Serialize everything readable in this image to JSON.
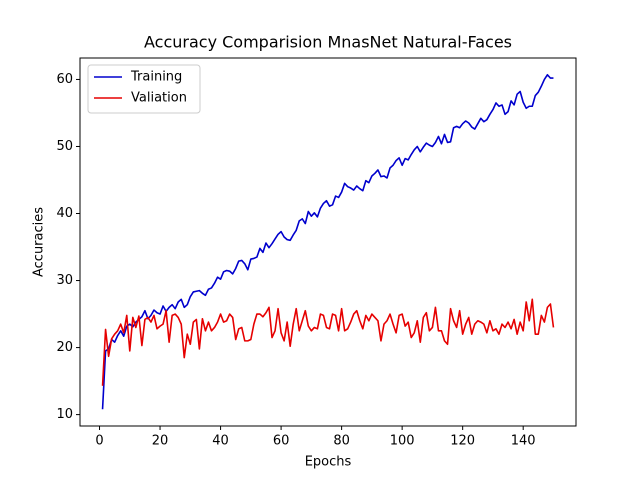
{
  "chart_data": {
    "type": "line",
    "title": "Accuracy Comparision MnasNet Natural-Faces",
    "x_label": "Epochs",
    "y_label": "Accuracies",
    "x": [
      1,
      2,
      3,
      4,
      5,
      6,
      7,
      8,
      9,
      10,
      11,
      12,
      13,
      14,
      15,
      16,
      17,
      18,
      19,
      20,
      21,
      22,
      23,
      24,
      25,
      26,
      27,
      28,
      29,
      30,
      31,
      32,
      33,
      34,
      35,
      36,
      37,
      38,
      39,
      40,
      41,
      42,
      43,
      44,
      45,
      46,
      47,
      48,
      49,
      50,
      51,
      52,
      53,
      54,
      55,
      56,
      57,
      58,
      59,
      60,
      61,
      62,
      63,
      64,
      65,
      66,
      67,
      68,
      69,
      70,
      71,
      72,
      73,
      74,
      75,
      76,
      77,
      78,
      79,
      80,
      81,
      82,
      83,
      84,
      85,
      86,
      87,
      88,
      89,
      90,
      91,
      92,
      93,
      94,
      95,
      96,
      97,
      98,
      99,
      100,
      101,
      102,
      103,
      104,
      105,
      106,
      107,
      108,
      109,
      110,
      111,
      112,
      113,
      114,
      115,
      116,
      117,
      118,
      119,
      120,
      121,
      122,
      123,
      124,
      125,
      126,
      127,
      128,
      129,
      130,
      131,
      132,
      133,
      134,
      135,
      136,
      137,
      138,
      139,
      140,
      141,
      142,
      143,
      144,
      145,
      146,
      147,
      148,
      149,
      150
    ],
    "series": [
      {
        "name": "Training",
        "color": "#0000cd",
        "values": [
          10.8,
          19.5,
          19.8,
          21.2,
          20.8,
          21.8,
          22.5,
          21.7,
          23.2,
          23.5,
          23.1,
          23.8,
          24.2,
          24.6,
          25.5,
          24.3,
          24.8,
          25.6,
          25.2,
          25.0,
          26.2,
          25.4,
          26.0,
          26.4,
          25.8,
          26.8,
          27.2,
          26.0,
          26.4,
          27.6,
          28.3,
          28.4,
          28.5,
          28.1,
          27.8,
          28.7,
          28.9,
          29.6,
          30.5,
          30.2,
          31.3,
          31.5,
          31.4,
          31.0,
          31.8,
          32.9,
          33.0,
          32.5,
          31.6,
          33.2,
          33.3,
          33.5,
          34.8,
          34.2,
          35.6,
          34.9,
          35.5,
          36.2,
          36.9,
          37.3,
          36.5,
          36.1,
          36.0,
          36.8,
          37.5,
          38.9,
          39.2,
          38.5,
          40.3,
          39.6,
          40.1,
          39.5,
          40.8,
          41.5,
          41.9,
          41.1,
          41.3,
          42.6,
          42.4,
          43.2,
          44.5,
          44.0,
          43.8,
          43.5,
          44.1,
          43.7,
          43.4,
          44.9,
          44.6,
          45.6,
          46.0,
          46.5,
          45.5,
          45.6,
          45.3,
          46.8,
          47.2,
          47.9,
          48.3,
          47.2,
          48.2,
          48.0,
          48.8,
          49.5,
          50.0,
          49.2,
          49.9,
          50.5,
          50.2,
          50.0,
          50.6,
          51.5,
          50.4,
          51.8,
          50.6,
          50.7,
          52.8,
          53.0,
          52.8,
          53.4,
          53.8,
          53.5,
          52.9,
          52.6,
          53.4,
          54.2,
          53.7,
          54.0,
          54.8,
          55.5,
          56.5,
          56.0,
          56.2,
          54.8,
          55.2,
          56.8,
          56.2,
          57.8,
          58.2,
          56.6,
          55.7,
          56.0,
          56.0,
          57.6,
          58.1,
          59.0,
          60.0,
          60.7,
          60.2,
          60.2
        ]
      },
      {
        "name": "Valiation",
        "color": "#e60000",
        "values": [
          14.3,
          22.7,
          18.7,
          21.3,
          22.0,
          22.5,
          23.5,
          22.2,
          24.8,
          19.5,
          24.5,
          23.0,
          24.7,
          20.3,
          24.2,
          24.5,
          23.8,
          24.8,
          22.8,
          23.2,
          23.5,
          25.5,
          20.8,
          24.8,
          25.0,
          24.5,
          23.5,
          18.5,
          22.0,
          20.5,
          23.8,
          24.2,
          19.8,
          24.3,
          22.5,
          23.8,
          22.5,
          23.0,
          23.8,
          25.0,
          23.8,
          24.0,
          25.0,
          24.5,
          21.2,
          22.8,
          23.0,
          21.0,
          21.0,
          21.2,
          23.5,
          25.0,
          25.0,
          24.6,
          25.2,
          26.0,
          21.5,
          22.5,
          25.8,
          22.2,
          21.0,
          23.8,
          20.2,
          23.5,
          25.8,
          22.5,
          24.0,
          25.5,
          23.2,
          22.5,
          23.0,
          22.8,
          25.0,
          24.8,
          23.0,
          22.8,
          25.0,
          24.8,
          22.5,
          25.8,
          22.5,
          22.8,
          23.8,
          25.0,
          25.5,
          24.0,
          22.8,
          24.8,
          24.0,
          25.0,
          24.5,
          24.0,
          21.0,
          23.5,
          24.0,
          25.0,
          23.5,
          22.2,
          24.8,
          25.0,
          23.2,
          23.8,
          21.5,
          22.2,
          24.0,
          20.8,
          24.5,
          25.2,
          22.5,
          23.0,
          26.0,
          22.5,
          22.5,
          21.0,
          20.5,
          25.8,
          24.0,
          23.0,
          25.5,
          22.0,
          23.5,
          24.5,
          22.0,
          23.5,
          24.0,
          23.8,
          23.5,
          22.2,
          24.0,
          22.5,
          22.8,
          22.0,
          23.5,
          23.0,
          23.8,
          22.8,
          24.2,
          22.0,
          23.8,
          22.5,
          26.8,
          24.0,
          27.2,
          22.0,
          22.0,
          24.8,
          23.8,
          26.0,
          26.5,
          23.0
        ]
      }
    ],
    "xlim": [
      -6.45,
      157.45
    ],
    "ylim": [
      8.3,
      63.2
    ],
    "xticks": [
      0,
      20,
      40,
      60,
      80,
      100,
      120,
      140
    ],
    "yticks": [
      10,
      20,
      30,
      40,
      50,
      60
    ],
    "legend": "upper left"
  }
}
